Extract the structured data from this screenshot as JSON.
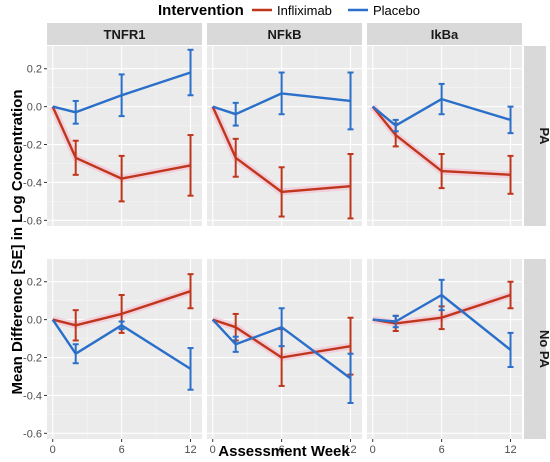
{
  "chart_data": {
    "type": "line",
    "legend": {
      "title": "Intervention",
      "placement": "top",
      "entries": [
        {
          "name": "Infliximab",
          "color": "#c0361d"
        },
        {
          "name": "Placebo",
          "color": "#2a6fc9"
        }
      ]
    },
    "xlabel": "Assessment Week",
    "ylabel": "Mean Difference [SE] in Log Concentration",
    "x_ticks": [
      0,
      6,
      12
    ],
    "x_tick_labels": [
      "0",
      "6",
      "12"
    ],
    "xlim": [
      -0.5,
      13
    ],
    "ylim": [
      -0.63,
      0.32
    ],
    "y_ticks": [
      0.2,
      0.0,
      -0.2,
      -0.4,
      -0.6
    ],
    "y_tick_labels": [
      "0.2",
      "0.0",
      "-0.2",
      "-0.4",
      "-0.6"
    ],
    "column_strips": [
      "TNFR1",
      "NFkB",
      "IkBa"
    ],
    "row_strips": [
      "PA",
      "No PA"
    ],
    "grid": true,
    "x": [
      0,
      2,
      6,
      12
    ],
    "panels": [
      {
        "row": 0,
        "col": 0,
        "series": [
          {
            "name": "Infliximab",
            "y": [
              0,
              -0.27,
              -0.38,
              -0.31
            ],
            "err": [
              0,
              0.09,
              0.12,
              0.16
            ]
          },
          {
            "name": "Placebo",
            "y": [
              0,
              -0.03,
              0.06,
              0.18
            ],
            "err": [
              0,
              0.06,
              0.11,
              0.12
            ]
          }
        ]
      },
      {
        "row": 0,
        "col": 1,
        "series": [
          {
            "name": "Infliximab",
            "y": [
              0,
              -0.27,
              -0.45,
              -0.42
            ],
            "err": [
              0,
              0.1,
              0.13,
              0.17
            ]
          },
          {
            "name": "Placebo",
            "y": [
              0,
              -0.04,
              0.07,
              0.03
            ],
            "err": [
              0,
              0.06,
              0.11,
              0.15
            ]
          }
        ]
      },
      {
        "row": 0,
        "col": 2,
        "series": [
          {
            "name": "Infliximab",
            "y": [
              0,
              -0.15,
              -0.34,
              -0.36
            ],
            "err": [
              0,
              0.06,
              0.09,
              0.1
            ]
          },
          {
            "name": "Placebo",
            "y": [
              0,
              -0.1,
              0.04,
              -0.07
            ],
            "err": [
              0,
              0.03,
              0.08,
              0.07
            ]
          }
        ]
      },
      {
        "row": 1,
        "col": 0,
        "series": [
          {
            "name": "Infliximab",
            "y": [
              0,
              -0.03,
              0.03,
              0.15
            ],
            "err": [
              0,
              0.08,
              0.1,
              0.09
            ]
          },
          {
            "name": "Placebo",
            "y": [
              0,
              -0.18,
              -0.03,
              -0.26
            ],
            "err": [
              0,
              0.05,
              0.02,
              0.11
            ]
          }
        ]
      },
      {
        "row": 1,
        "col": 1,
        "series": [
          {
            "name": "Infliximab",
            "y": [
              0,
              -0.04,
              -0.2,
              -0.14
            ],
            "err": [
              0,
              0.07,
              0.15,
              0.15
            ]
          },
          {
            "name": "Placebo",
            "y": [
              0,
              -0.13,
              -0.04,
              -0.31
            ],
            "err": [
              0,
              0.04,
              0.1,
              0.13
            ]
          }
        ]
      },
      {
        "row": 1,
        "col": 2,
        "series": [
          {
            "name": "Infliximab",
            "y": [
              0,
              -0.02,
              0.01,
              0.13
            ],
            "err": [
              0,
              0.04,
              0.06,
              0.07
            ]
          },
          {
            "name": "Placebo",
            "y": [
              0,
              -0.01,
              0.13,
              -0.16
            ],
            "err": [
              0,
              0.03,
              0.08,
              0.09
            ]
          }
        ]
      }
    ]
  }
}
